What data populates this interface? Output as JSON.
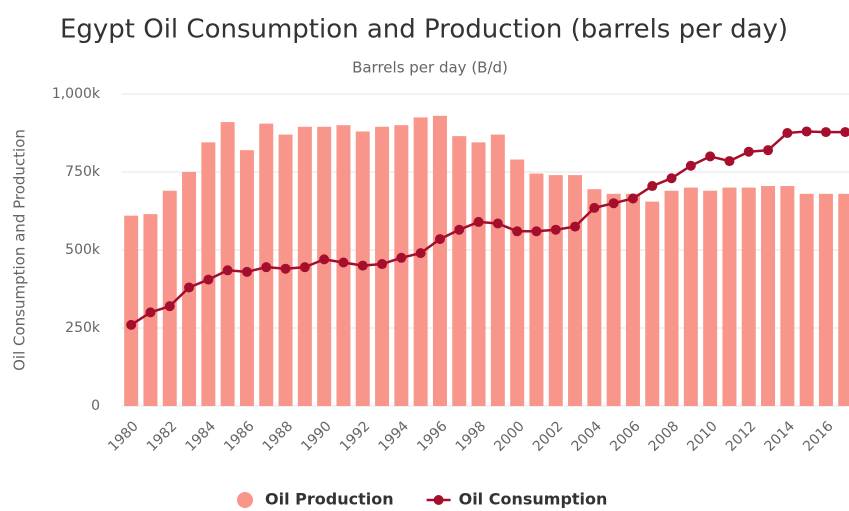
{
  "chart_data": {
    "type": "bar-line",
    "title": "Egypt Oil Consumption and Production (barrels per day)",
    "subtitle": "Barrels per day (B/d)",
    "y_label": "Oil Consumption and Production",
    "categories": [
      "1980",
      null,
      "1982",
      null,
      "1984",
      null,
      "1986",
      null,
      "1988",
      null,
      "1990",
      null,
      "1992",
      null,
      "1994",
      null,
      "1996",
      null,
      "1998",
      null,
      "2000",
      null,
      "2002",
      null,
      "2004",
      null,
      "2006",
      null,
      "2008",
      null,
      "2010",
      null,
      "2012",
      null,
      "2014",
      null,
      "2016",
      null
    ],
    "series": [
      {
        "name": "Oil Production",
        "type": "bar",
        "color": "#f9968b",
        "values": [
          610000,
          615000,
          690000,
          750000,
          845000,
          910000,
          820000,
          905000,
          870000,
          895000,
          895000,
          900000,
          880000,
          895000,
          900000,
          925000,
          930000,
          865000,
          845000,
          870000,
          790000,
          745000,
          740000,
          740000,
          695000,
          680000,
          680000,
          655000,
          690000,
          700000,
          690000,
          700000,
          700000,
          705000,
          705000,
          680000,
          680000,
          680000
        ]
      },
      {
        "name": "Oil Consumption",
        "type": "line",
        "color": "#a50f2d",
        "values": [
          260000,
          300000,
          320000,
          380000,
          405000,
          435000,
          430000,
          445000,
          440000,
          445000,
          470000,
          460000,
          450000,
          455000,
          475000,
          490000,
          535000,
          565000,
          590000,
          585000,
          560000,
          560000,
          565000,
          575000,
          635000,
          650000,
          665000,
          705000,
          730000,
          770000,
          800000,
          785000,
          815000,
          820000,
          875000,
          880000,
          878000,
          878000
        ]
      }
    ],
    "ylim": [
      0,
      1000000
    ],
    "yticks": [
      0,
      {
        "value": 250000,
        "label": "250k"
      },
      {
        "value": 500000,
        "label": "500k"
      },
      {
        "value": 750000,
        "label": "750k"
      },
      {
        "value": 1000000,
        "label": "1,000k"
      }
    ],
    "grid": true,
    "legend": "bottom"
  }
}
